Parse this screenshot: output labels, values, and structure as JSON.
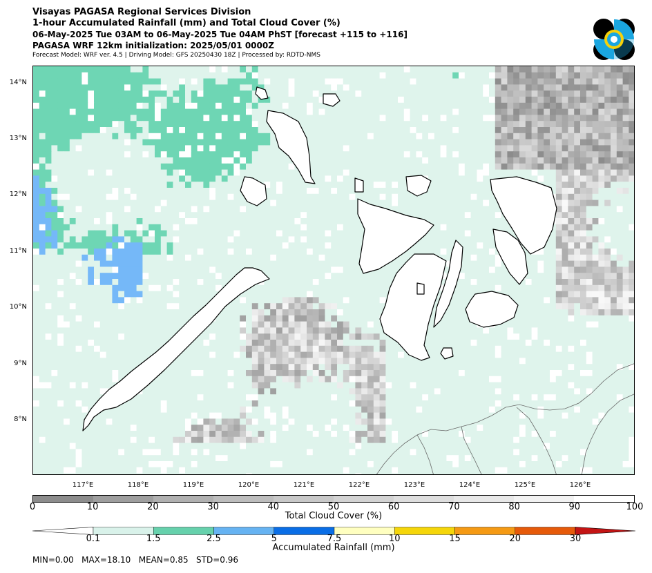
{
  "header": {
    "line1": "Visayas PAGASA Regional Services Division",
    "line2": "1-hour Accumulated Rainfall (mm) and Total Cloud Cover (%)",
    "line3": "06-May-2025 Tue 03AM to 06-May-2025 Tue 04AM PhST [forecast +115 to +116]",
    "line4": "PAGASA WRF 12km initialization: 2025/05/01 0000Z",
    "line5": "Forecast Model: WRF ver. 4.5 | Driving Model: GFS 20250430 18Z | Processed by: RDTD-NMS"
  },
  "map": {
    "lat_labels": [
      "14°N",
      "13°N",
      "12°N",
      "11°N",
      "10°N",
      "9°N",
      "8°N"
    ],
    "lon_labels": [
      "117°E",
      "118°E",
      "119°E",
      "120°E",
      "121°E",
      "122°E",
      "123°E",
      "124°E",
      "125°E",
      "126°E"
    ]
  },
  "cloud_legend": {
    "label": "Total Cloud Cover (%)",
    "ticks": [
      "0",
      "10",
      "20",
      "30",
      "40",
      "50",
      "60",
      "70",
      "80",
      "90",
      "100"
    ],
    "colors": [
      "#8c8c8c",
      "#9e9e9e",
      "#b0b0b0",
      "#bdbdbd",
      "#c8c8c8",
      "#d3d3d3",
      "#dedede",
      "#e8e8e8",
      "#f2f2f2",
      "#ffffff"
    ]
  },
  "rain_legend": {
    "label": "Accumulated Rainfall (mm)",
    "ticks": [
      "0.1",
      "1.5",
      "2.5",
      "5",
      "7.5",
      "10",
      "15",
      "20",
      "30"
    ],
    "colors": [
      "#ffffff",
      "#d9f2ea",
      "#66d1ac",
      "#66b3f2",
      "#0a6ee6",
      "#ffffc0",
      "#f5d60a",
      "#f59a14",
      "#e65a0a",
      "#c41414"
    ]
  },
  "stats": {
    "text": "MIN=0.00   MAX=18.10   MEAN=0.85   STD=0.96"
  }
}
